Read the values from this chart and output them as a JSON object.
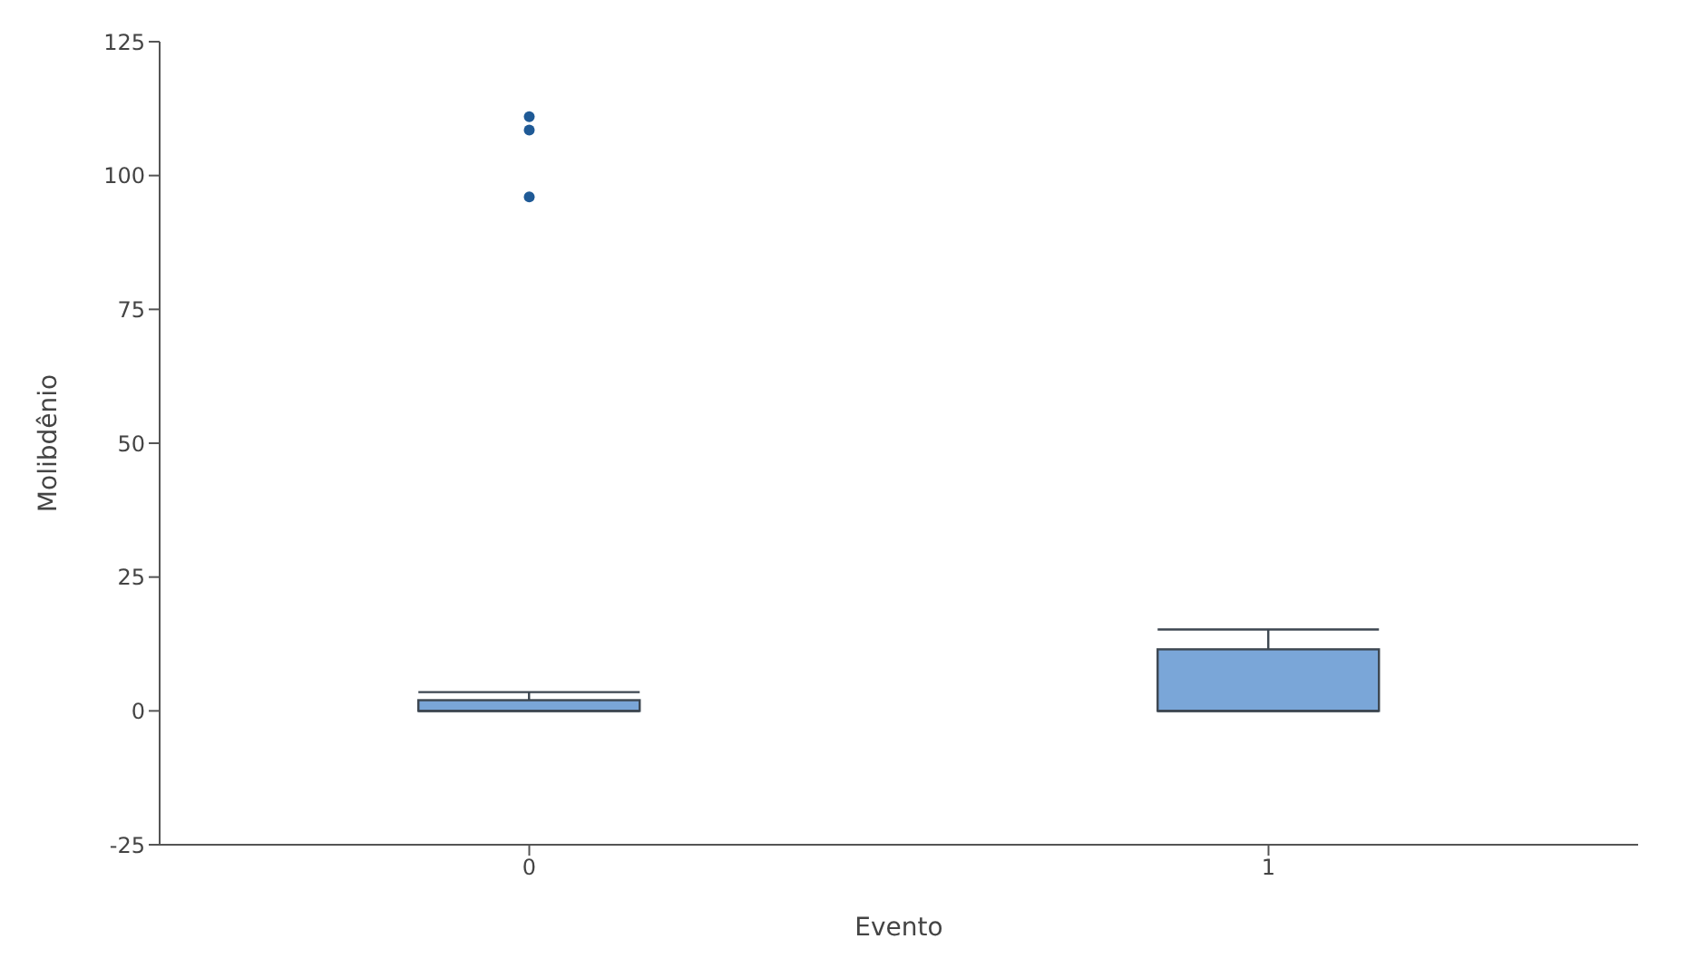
{
  "chart_data": {
    "type": "box",
    "xlabel": "Evento",
    "ylabel": "Molibdênio",
    "categories": [
      "0",
      "1"
    ],
    "series": [
      {
        "color": "#7aa6d8",
        "boxes": [
          {
            "low": 0,
            "q1": 0,
            "median": 0,
            "q3": 2,
            "high": 3.5,
            "outliers": [
              111,
              108.5,
              96
            ]
          },
          {
            "low": 0,
            "q1": 0,
            "median": 0,
            "q3": 11.5,
            "high": 15.2
          }
        ]
      }
    ],
    "ylim": [
      -25,
      125
    ],
    "yticks": [
      -25,
      0,
      25,
      50,
      75,
      100,
      125
    ],
    "grid": false,
    "legend": false
  }
}
